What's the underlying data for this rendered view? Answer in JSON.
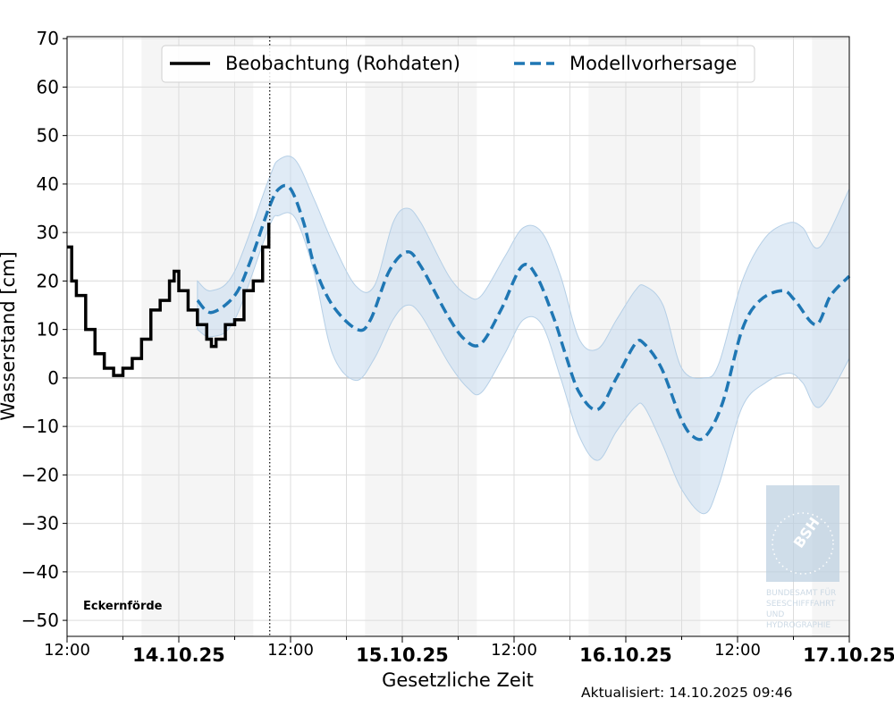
{
  "chart_data": {
    "type": "line",
    "xlabel": "Gesetzliche Zeit",
    "ylabel": "Wasserstand [cm]",
    "xlim": [
      "2025-10-13T12:00",
      "2025-10-17T00:00"
    ],
    "ylim": [
      -53.3,
      70.4
    ],
    "yticks": [
      70,
      60,
      50,
      40,
      30,
      20,
      10,
      0,
      -10,
      -20,
      -30,
      -40,
      -50
    ],
    "ytick_labels": [
      "70",
      "60",
      "50",
      "40",
      "30",
      "20",
      "10",
      "0",
      "−10",
      "−20",
      "−30",
      "−40",
      "−50"
    ],
    "xticks": [
      {
        "t": "2025-10-13T12:00",
        "label": "12:00",
        "bold": false
      },
      {
        "t": "2025-10-14T00:00",
        "label": "14.10.25",
        "bold": true
      },
      {
        "t": "2025-10-14T12:00",
        "label": "12:00",
        "bold": false
      },
      {
        "t": "2025-10-15T00:00",
        "label": "15.10.25",
        "bold": true
      },
      {
        "t": "2025-10-15T12:00",
        "label": "12:00",
        "bold": false
      },
      {
        "t": "2025-10-16T00:00",
        "label": "16.10.25",
        "bold": true
      },
      {
        "t": "2025-10-16T12:00",
        "label": "12:00",
        "bold": false
      },
      {
        "t": "2025-10-17T00:00",
        "label": "17.10.25",
        "bold": true
      }
    ],
    "grid": true,
    "night_shading": [
      [
        "2025-10-13T20:00",
        "2025-10-14T08:00"
      ],
      [
        "2025-10-14T20:00",
        "2025-10-15T08:00"
      ],
      [
        "2025-10-15T20:00",
        "2025-10-16T08:00"
      ],
      [
        "2025-10-16T20:00",
        "2025-10-17T00:00"
      ]
    ],
    "now_line": "2025-10-14T09:46",
    "legend_placement": "top-center",
    "station": "Eckernförde",
    "series": [
      {
        "name": "Beobachtung (Rohdaten)",
        "color": "#000000",
        "style": "solid",
        "points": [
          [
            "2025-10-13T12:00",
            27
          ],
          [
            "2025-10-13T12:30",
            20
          ],
          [
            "2025-10-13T13:00",
            17
          ],
          [
            "2025-10-13T14:00",
            10
          ],
          [
            "2025-10-13T15:00",
            5
          ],
          [
            "2025-10-13T16:00",
            2
          ],
          [
            "2025-10-13T17:00",
            0.5
          ],
          [
            "2025-10-13T18:00",
            2
          ],
          [
            "2025-10-13T19:00",
            4
          ],
          [
            "2025-10-13T20:00",
            8
          ],
          [
            "2025-10-13T21:00",
            14
          ],
          [
            "2025-10-13T22:00",
            16
          ],
          [
            "2025-10-13T23:00",
            20
          ],
          [
            "2025-10-13T23:30",
            22
          ],
          [
            "2025-10-14T00:00",
            18
          ],
          [
            "2025-10-14T01:00",
            14
          ],
          [
            "2025-10-14T02:00",
            11
          ],
          [
            "2025-10-14T03:00",
            8
          ],
          [
            "2025-10-14T03:30",
            6.5
          ],
          [
            "2025-10-14T04:00",
            8
          ],
          [
            "2025-10-14T05:00",
            11
          ],
          [
            "2025-10-14T06:00",
            12
          ],
          [
            "2025-10-14T07:00",
            18
          ],
          [
            "2025-10-14T08:00",
            20
          ],
          [
            "2025-10-14T09:00",
            27
          ],
          [
            "2025-10-14T09:40",
            32
          ]
        ]
      },
      {
        "name": "Modellvorhersage",
        "color": "#1f77b4",
        "style": "dashed",
        "points": [
          [
            "2025-10-14T02:00",
            16
          ],
          [
            "2025-10-14T03:30",
            13.5
          ],
          [
            "2025-10-14T06:00",
            17
          ],
          [
            "2025-10-14T07:40",
            24
          ],
          [
            "2025-10-14T09:40",
            35
          ],
          [
            "2025-10-14T10:45",
            39
          ],
          [
            "2025-10-14T12:00",
            39
          ],
          [
            "2025-10-14T13:25",
            32
          ],
          [
            "2025-10-14T14:35",
            23
          ],
          [
            "2025-10-14T16:30",
            15
          ],
          [
            "2025-10-14T19:10",
            10
          ],
          [
            "2025-10-14T20:35",
            12
          ],
          [
            "2025-10-14T22:35",
            22
          ],
          [
            "2025-10-15T00:30",
            26
          ],
          [
            "2025-10-15T02:00",
            23
          ],
          [
            "2025-10-15T04:50",
            13
          ],
          [
            "2025-10-15T06:40",
            8
          ],
          [
            "2025-10-15T08:25",
            7
          ],
          [
            "2025-10-15T10:35",
            14
          ],
          [
            "2025-10-15T12:50",
            23
          ],
          [
            "2025-10-15T14:25",
            21
          ],
          [
            "2025-10-15T16:20",
            12
          ],
          [
            "2025-10-15T17:30",
            5
          ],
          [
            "2025-10-15T19:00",
            -3
          ],
          [
            "2025-10-15T21:00",
            -6.5
          ],
          [
            "2025-10-15T23:00",
            0
          ],
          [
            "2025-10-16T01:00",
            7
          ],
          [
            "2025-10-16T02:00",
            7
          ],
          [
            "2025-10-16T03:50",
            2
          ],
          [
            "2025-10-16T05:50",
            -8
          ],
          [
            "2025-10-16T07:10",
            -12
          ],
          [
            "2025-10-16T08:35",
            -12
          ],
          [
            "2025-10-16T10:25",
            -5
          ],
          [
            "2025-10-16T12:30",
            10
          ],
          [
            "2025-10-16T14:25",
            16
          ],
          [
            "2025-10-16T16:50",
            18
          ],
          [
            "2025-10-16T18:10",
            16
          ],
          [
            "2025-10-16T20:25",
            11
          ],
          [
            "2025-10-16T22:00",
            17
          ],
          [
            "2025-10-17T00:00",
            21
          ]
        ]
      }
    ],
    "uncertainty_band": {
      "color": "#c6dbef",
      "points": [
        [
          "2025-10-14T02:00",
          10,
          20
        ],
        [
          "2025-10-14T03:30",
          8.5,
          18
        ],
        [
          "2025-10-14T06:00",
          12,
          22
        ],
        [
          "2025-10-14T09:40",
          31,
          41
        ],
        [
          "2025-10-14T10:45",
          33.5,
          45
        ],
        [
          "2025-10-14T12:30",
          33,
          45
        ],
        [
          "2025-10-14T14:30",
          22,
          37
        ],
        [
          "2025-10-14T16:30",
          5,
          28
        ],
        [
          "2025-10-14T19:00",
          -0.5,
          19
        ],
        [
          "2025-10-14T21:00",
          4,
          19
        ],
        [
          "2025-10-14T23:00",
          12,
          32
        ],
        [
          "2025-10-15T00:30",
          15,
          35
        ],
        [
          "2025-10-15T02:00",
          13,
          32
        ],
        [
          "2025-10-15T05:00",
          3,
          21
        ],
        [
          "2025-10-15T07:00",
          -2,
          17
        ],
        [
          "2025-10-15T08:30",
          -3,
          17
        ],
        [
          "2025-10-15T11:00",
          5,
          25
        ],
        [
          "2025-10-15T13:00",
          12,
          31
        ],
        [
          "2025-10-15T15:00",
          11,
          30
        ],
        [
          "2025-10-15T17:00",
          0,
          21
        ],
        [
          "2025-10-15T19:00",
          -12,
          8
        ],
        [
          "2025-10-15T21:00",
          -17,
          6
        ],
        [
          "2025-10-15T23:00",
          -11,
          12
        ],
        [
          "2025-10-16T01:00",
          -6,
          18
        ],
        [
          "2025-10-16T02:00",
          -6,
          19
        ],
        [
          "2025-10-16T04:00",
          -14,
          15
        ],
        [
          "2025-10-16T06:00",
          -23,
          2
        ],
        [
          "2025-10-16T08:25",
          -28,
          0
        ],
        [
          "2025-10-16T10:00",
          -22,
          3
        ],
        [
          "2025-10-16T12:30",
          -6,
          20
        ],
        [
          "2025-10-16T15:00",
          -1,
          29
        ],
        [
          "2025-10-16T17:30",
          1,
          32
        ],
        [
          "2025-10-16T19:00",
          -1,
          31
        ],
        [
          "2025-10-16T20:50",
          -6,
          27
        ],
        [
          "2025-10-17T00:00",
          4,
          39
        ]
      ]
    }
  },
  "footer": {
    "updated": "Aktualisiert: 14.10.2025 09:46"
  },
  "logo": {
    "text": "BSH",
    "caption": [
      "BUNDESAMT FÜR",
      "SEESCHIFFFAHRT",
      "UND",
      "HYDROGRAPHIE"
    ]
  }
}
